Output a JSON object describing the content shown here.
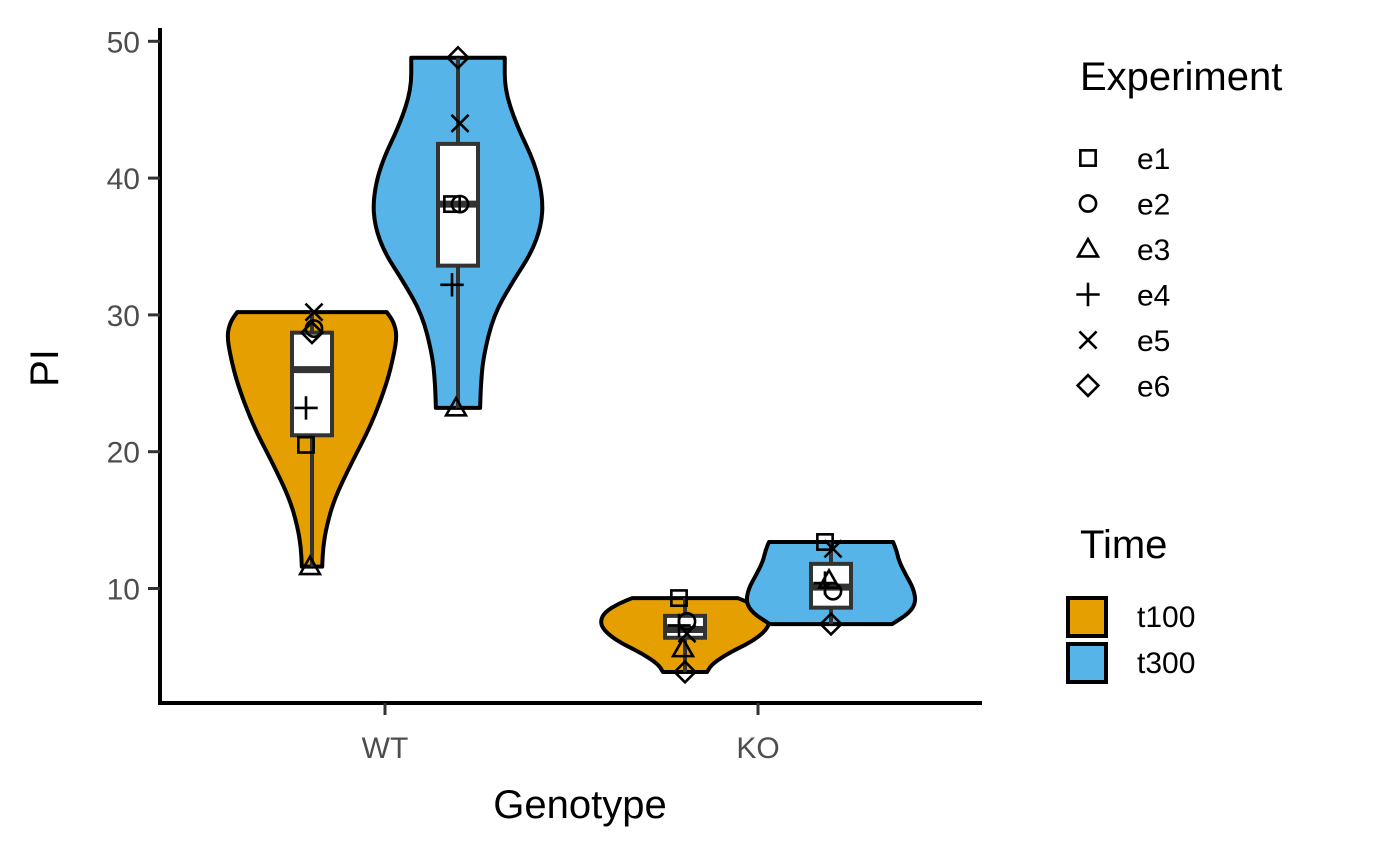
{
  "chart_data": {
    "type": "violin",
    "xlabel": "Genotype",
    "ylabel": "PI",
    "categories": [
      "WT",
      "KO"
    ],
    "ylim": [
      1.5,
      51
    ],
    "yticks": [
      10,
      20,
      30,
      40,
      50
    ],
    "grid": false,
    "legend_position": "right",
    "fill_legend": {
      "title": "Time",
      "items": [
        {
          "label": "t100",
          "color": "#E69F00"
        },
        {
          "label": "t300",
          "color": "#56B4E9"
        }
      ]
    },
    "shape_legend": {
      "title": "Experiment",
      "items": [
        {
          "label": "e1",
          "shape": "square"
        },
        {
          "label": "e2",
          "shape": "circle"
        },
        {
          "label": "e3",
          "shape": "triangle"
        },
        {
          "label": "e4",
          "shape": "plus"
        },
        {
          "label": "e5",
          "shape": "cross"
        },
        {
          "label": "e6",
          "shape": "diamond"
        }
      ]
    },
    "groups": [
      {
        "genotype": "WT",
        "time": "t100",
        "box": {
          "min": 11.6,
          "q1": 21.2,
          "median": 26.0,
          "q3": 28.7,
          "max": 30.2
        },
        "density": [
          [
            11.6,
            0.12
          ],
          [
            13,
            0.13
          ],
          [
            14.5,
            0.17
          ],
          [
            16.5,
            0.26
          ],
          [
            19,
            0.45
          ],
          [
            22,
            0.7
          ],
          [
            25,
            0.88
          ],
          [
            27,
            0.96
          ],
          [
            28.5,
            1.0
          ],
          [
            29.5,
            0.96
          ],
          [
            30.2,
            0.88
          ]
        ],
        "points": [
          {
            "experiment": "e1",
            "y": 20.5
          },
          {
            "experiment": "e2",
            "y": 29.0
          },
          {
            "experiment": "e3",
            "y": 11.6
          },
          {
            "experiment": "e4",
            "y": 23.2
          },
          {
            "experiment": "e5",
            "y": 30.2
          },
          {
            "experiment": "e6",
            "y": 28.7
          }
        ]
      },
      {
        "genotype": "WT",
        "time": "t300",
        "box": {
          "min": 23.2,
          "q1": 33.6,
          "median": 38.1,
          "q3": 42.5,
          "max": 48.8
        },
        "density": [
          [
            23.2,
            0.26
          ],
          [
            25,
            0.27
          ],
          [
            27,
            0.3
          ],
          [
            30,
            0.42
          ],
          [
            32.5,
            0.65
          ],
          [
            34.5,
            0.86
          ],
          [
            36.5,
            0.98
          ],
          [
            38.5,
            1.0
          ],
          [
            41,
            0.91
          ],
          [
            44,
            0.68
          ],
          [
            46.5,
            0.55
          ],
          [
            48.8,
            0.55
          ]
        ],
        "points": [
          {
            "experiment": "e1",
            "y": 38.1
          },
          {
            "experiment": "e2",
            "y": 38.1
          },
          {
            "experiment": "e3",
            "y": 23.2
          },
          {
            "experiment": "e4",
            "y": 32.2
          },
          {
            "experiment": "e5",
            "y": 44.0
          },
          {
            "experiment": "e6",
            "y": 48.8
          }
        ]
      },
      {
        "genotype": "KO",
        "time": "t100",
        "box": {
          "min": 3.9,
          "q1": 6.4,
          "median": 7.0,
          "q3": 8.0,
          "max": 9.3
        },
        "density": [
          [
            3.9,
            0.26
          ],
          [
            4.5,
            0.32
          ],
          [
            5.3,
            0.52
          ],
          [
            6.1,
            0.78
          ],
          [
            6.9,
            0.95
          ],
          [
            7.6,
            1.0
          ],
          [
            8.3,
            0.94
          ],
          [
            8.9,
            0.78
          ],
          [
            9.3,
            0.62
          ]
        ],
        "points": [
          {
            "experiment": "e1",
            "y": 9.3
          },
          {
            "experiment": "e2",
            "y": 7.6
          },
          {
            "experiment": "e3",
            "y": 5.6
          },
          {
            "experiment": "e4",
            "y": 7.3
          },
          {
            "experiment": "e5",
            "y": 6.7
          },
          {
            "experiment": "e6",
            "y": 3.9
          }
        ]
      },
      {
        "genotype": "KO",
        "time": "t300",
        "box": {
          "min": 7.4,
          "q1": 8.6,
          "median": 10.1,
          "q3": 11.8,
          "max": 13.4
        },
        "density": [
          [
            7.4,
            0.72
          ],
          [
            8.2,
            0.92
          ],
          [
            9.0,
            1.0
          ],
          [
            10.0,
            0.97
          ],
          [
            11.0,
            0.88
          ],
          [
            12.0,
            0.8
          ],
          [
            12.8,
            0.77
          ],
          [
            13.4,
            0.73
          ]
        ],
        "points": [
          {
            "experiment": "e1",
            "y": 13.4
          },
          {
            "experiment": "e2",
            "y": 9.8
          },
          {
            "experiment": "e3",
            "y": 10.6
          },
          {
            "experiment": "e4",
            "y": 10.4
          },
          {
            "experiment": "e5",
            "y": 12.9
          },
          {
            "experiment": "e6",
            "y": 7.4
          }
        ]
      }
    ]
  }
}
